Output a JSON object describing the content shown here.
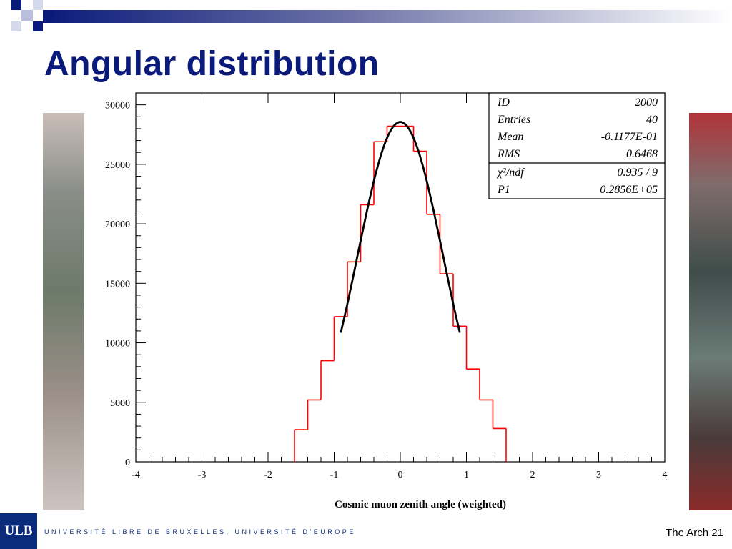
{
  "slide": {
    "title": "Angular distribution",
    "footer_logo": "ULB",
    "footer_university": "UNIVERSITÉ LIBRE DE BRUXELLES, UNIVERSITÉ D'EUROPE",
    "footer_right": "The Arch 21"
  },
  "stats_box": {
    "rows": [
      {
        "label": "ID",
        "value": "2000"
      },
      {
        "label": "Entries",
        "value": "40"
      },
      {
        "label": "Mean",
        "value": "-0.1177E-01"
      },
      {
        "label": "RMS",
        "value": "0.6468"
      }
    ],
    "fit_rows": [
      {
        "label": "χ²/ndf",
        "value": "0.935   /   9"
      },
      {
        "label": "P1",
        "value": "0.2856E+05"
      }
    ]
  },
  "chart_data": {
    "type": "bar",
    "subtype": "histogram",
    "xlabel": "Cosmic muon zenith angle (weighted)",
    "ylabel": "",
    "xlim": [
      -4,
      4
    ],
    "ylim": [
      0,
      31000
    ],
    "x_ticks": [
      -4,
      -3,
      -2,
      -1,
      0,
      1,
      2,
      3,
      4
    ],
    "y_ticks": [
      0,
      5000,
      10000,
      15000,
      20000,
      25000,
      30000
    ],
    "bin_width": 0.2,
    "bin_edges": [
      -1.6,
      -1.4,
      -1.2,
      -1.0,
      -0.8,
      -0.6,
      -0.4,
      -0.2,
      0.0,
      0.2,
      0.4,
      0.6,
      0.8,
      1.0,
      1.2,
      1.4,
      1.6
    ],
    "values": [
      2700,
      5200,
      8500,
      12200,
      16800,
      21600,
      26900,
      28200,
      28200,
      26100,
      20800,
      15800,
      11400,
      7800,
      5200,
      2800
    ],
    "histogram_color": "#ff0000",
    "fit": {
      "x_range": [
        -0.9,
        0.9
      ],
      "amplitude": 28560,
      "center": 0,
      "rms": 0.6468,
      "color": "#000000"
    },
    "grid": false
  }
}
